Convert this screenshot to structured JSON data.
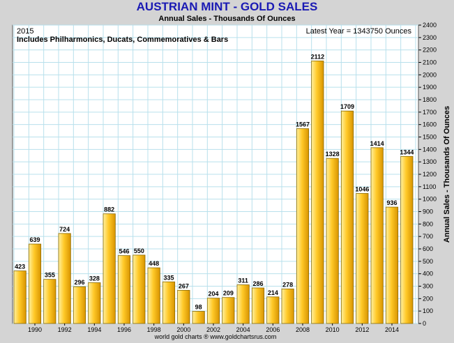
{
  "title": "AUSTRIAN MINT - GOLD SALES",
  "subtitle": "Annual Sales - Thousands Of Ounces",
  "year_label": "2015",
  "note": "Includes Philharmonics, Ducats, Commemoratives & Bars",
  "latest_year": "Latest Year = 1343750 Ounces",
  "footer": "world gold charts ® www.goldchartsrus.com",
  "colors": {
    "title": "#1a1ab4",
    "bar_light": "#ffd35a",
    "bar_dark": "#d89400",
    "bar_outline": "#8a6a00",
    "grid": "#b8e0ec",
    "frame": "#d4d4d4"
  },
  "chart_data": {
    "type": "bar",
    "title": "AUSTRIAN MINT - GOLD SALES",
    "subtitle": "Annual Sales - Thousands Of Ounces",
    "xlabel": "",
    "ylabel": "Annual Sales - Thousands Of Ounces",
    "ylim": [
      0,
      2400
    ],
    "y_ticks": [
      0,
      100,
      200,
      300,
      400,
      500,
      600,
      700,
      800,
      900,
      1000,
      1100,
      1200,
      1300,
      1400,
      1500,
      1600,
      1700,
      1800,
      1900,
      2000,
      2100,
      2200,
      2300,
      2400
    ],
    "x_tick_labels": [
      "1990",
      "1992",
      "1994",
      "1996",
      "1998",
      "2000",
      "2002",
      "2004",
      "2006",
      "2008",
      "2010",
      "2012",
      "2014"
    ],
    "categories": [
      "1989",
      "1990",
      "1991",
      "1992",
      "1993",
      "1994",
      "1995",
      "1996",
      "1997",
      "1998",
      "1999",
      "2000",
      "2001",
      "2002",
      "2003",
      "2004",
      "2005",
      "2006",
      "2007",
      "2008",
      "2009",
      "2010",
      "2011",
      "2012",
      "2013",
      "2014",
      "2015"
    ],
    "values": [
      423,
      639,
      355,
      724,
      296,
      328,
      882,
      546,
      550,
      448,
      335,
      267,
      98,
      204,
      209,
      311,
      286,
      214,
      278,
      1567,
      2112,
      1328,
      1709,
      1046,
      1414,
      936,
      1344
    ],
    "grid": true,
    "axis_position": "right"
  }
}
